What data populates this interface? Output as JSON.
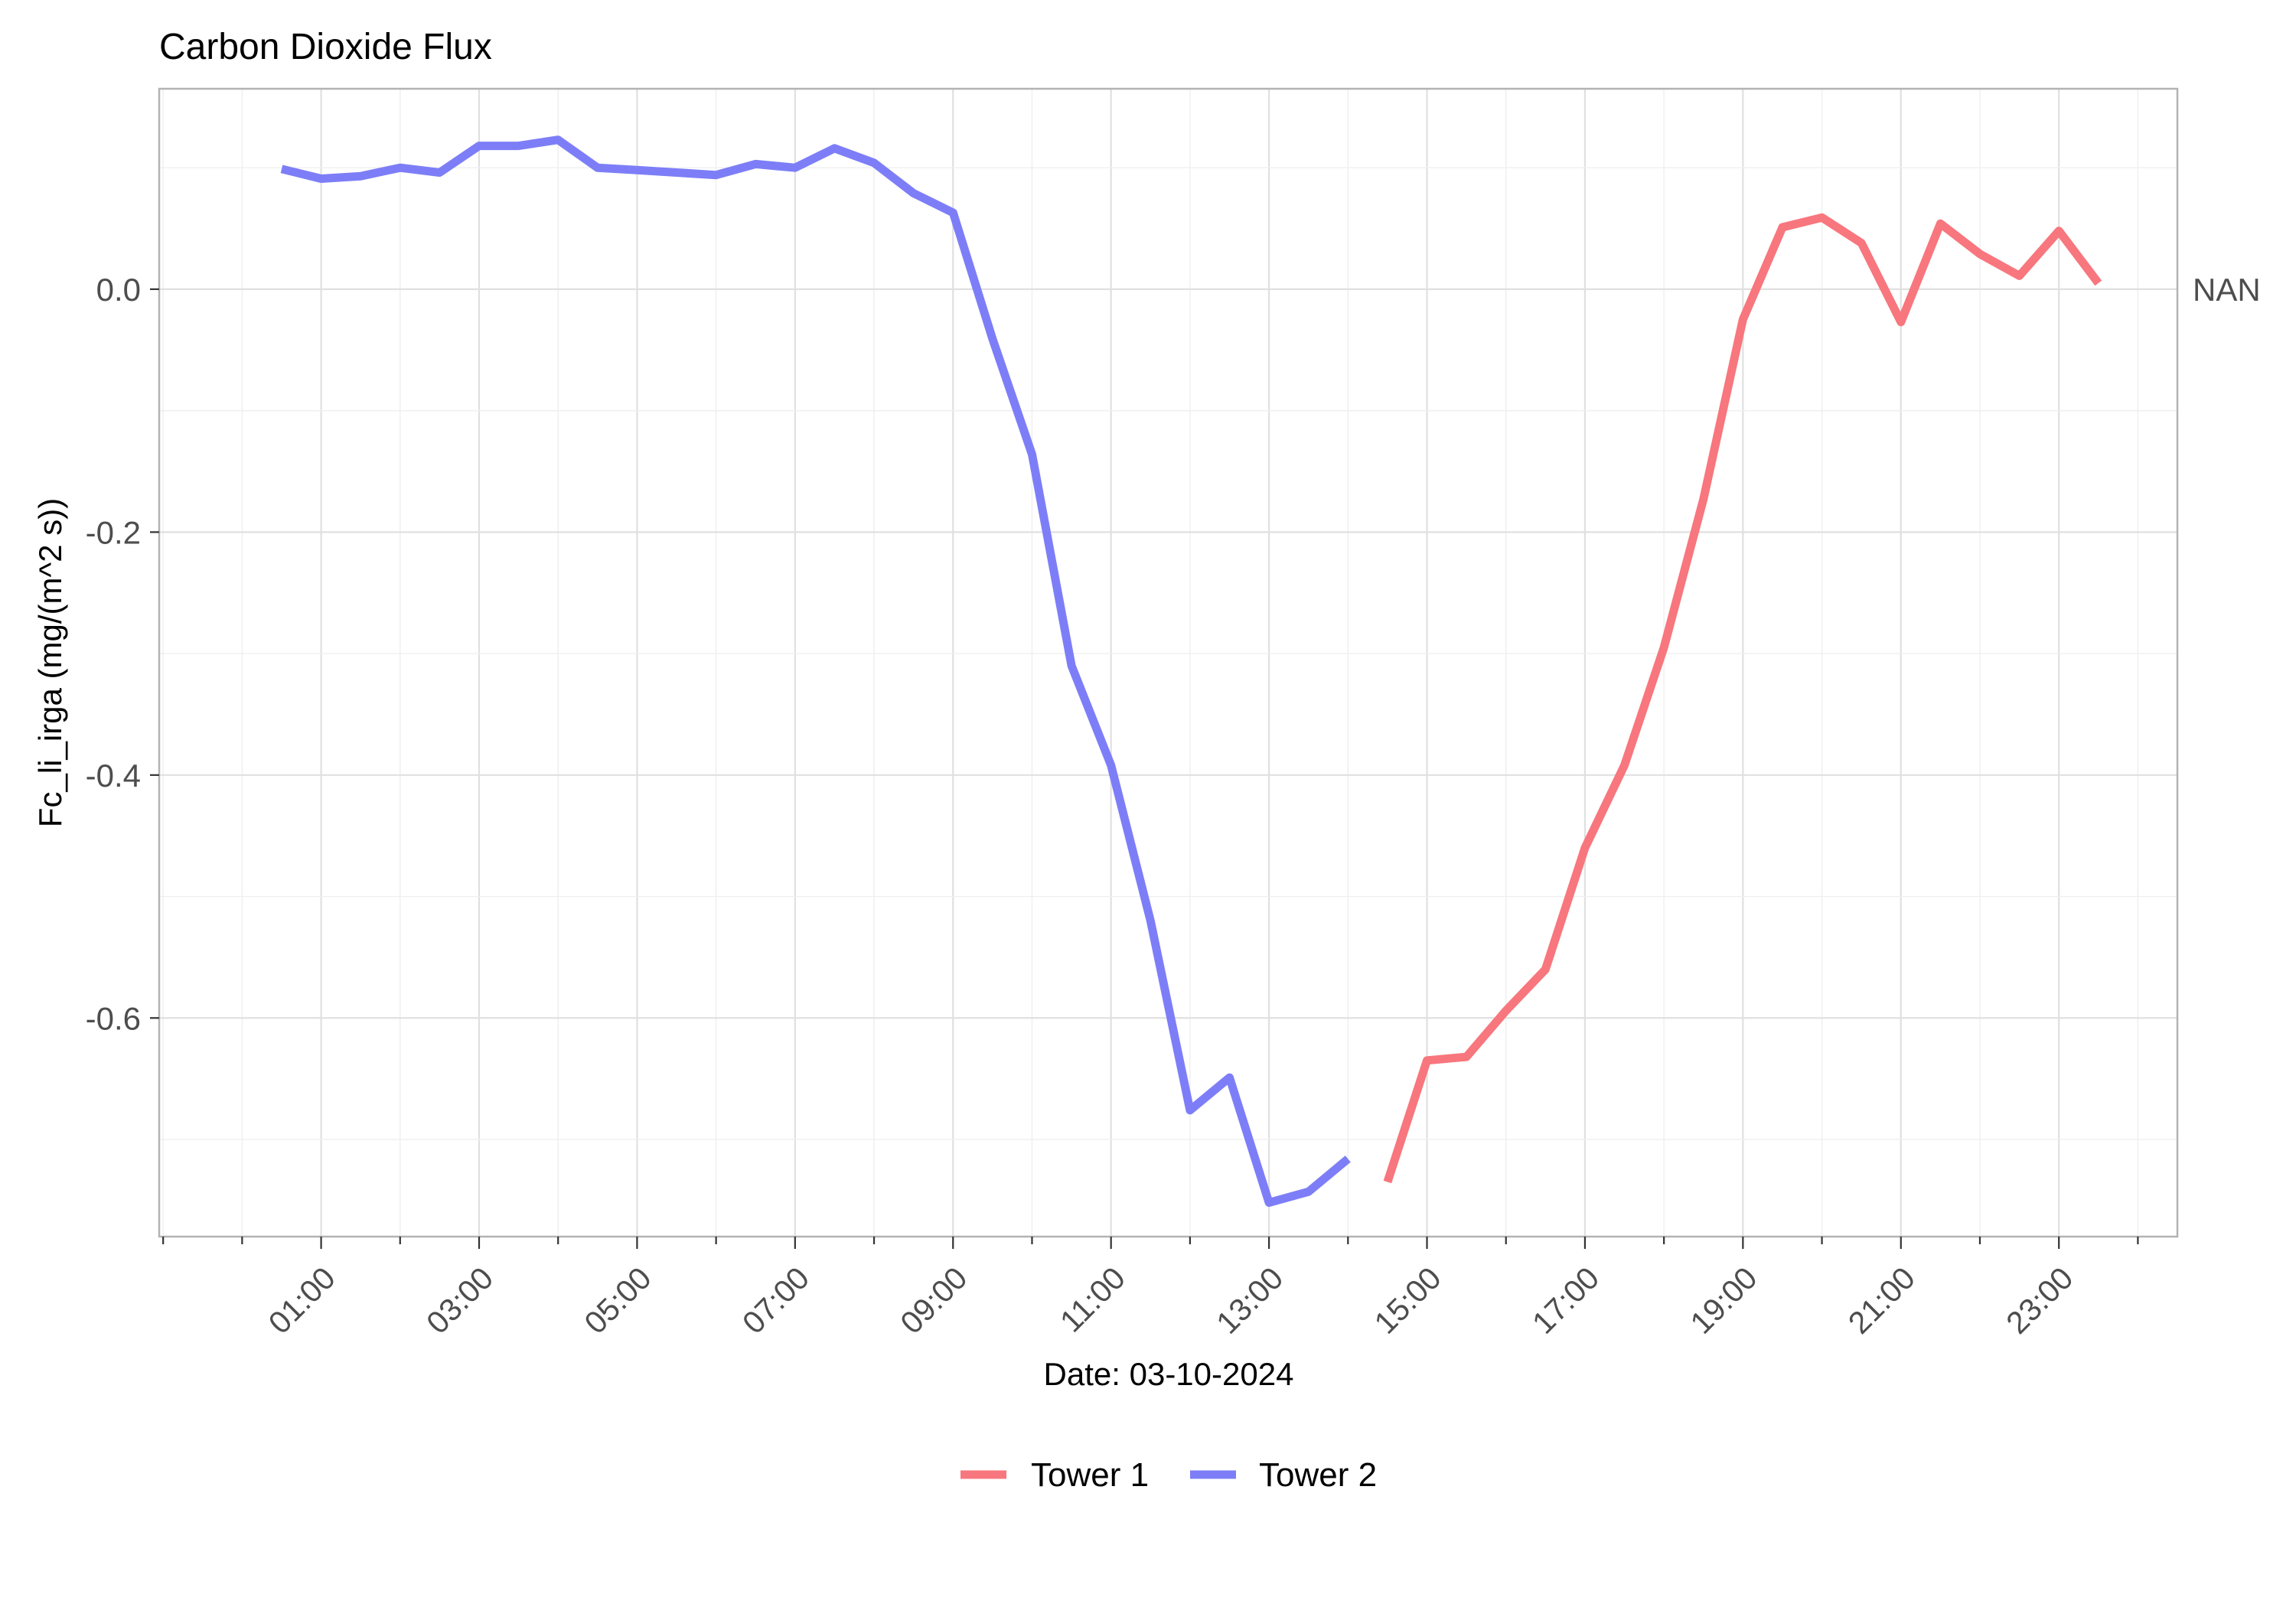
{
  "chart_data": {
    "type": "line",
    "title": "Carbon Dioxide Flux",
    "xlabel": "Date: 03-10-2024",
    "ylabel": "Fc_li_irga (mg/(m^2 s))",
    "y_secondary_label": "NAN",
    "xlim": [
      "00:00",
      "24:00"
    ],
    "ylim": [
      -0.78,
      0.165
    ],
    "x_ticks": [
      "01:00",
      "03:00",
      "05:00",
      "07:00",
      "09:00",
      "11:00",
      "13:00",
      "15:00",
      "17:00",
      "19:00",
      "21:00",
      "23:00"
    ],
    "y_ticks": [
      "0.0",
      "-0.2",
      "-0.4",
      "-0.6"
    ],
    "y_tick_values": [
      0.0,
      -0.2,
      -0.4,
      -0.6
    ],
    "grid": true,
    "legend_position": "bottom",
    "series": [
      {
        "name": "Tower 1",
        "color": "#f8767d",
        "points": [
          {
            "time": "14:30",
            "y": -0.735
          },
          {
            "time": "15:00",
            "y": -0.635
          },
          {
            "time": "15:30",
            "y": -0.632
          },
          {
            "time": "16:00",
            "y": -0.594
          },
          {
            "time": "16:30",
            "y": -0.56
          },
          {
            "time": "17:00",
            "y": -0.46
          },
          {
            "time": "17:30",
            "y": -0.392
          },
          {
            "time": "18:00",
            "y": -0.295
          },
          {
            "time": "18:30",
            "y": -0.173
          },
          {
            "time": "19:00",
            "y": -0.025
          },
          {
            "time": "19:30",
            "y": 0.051
          },
          {
            "time": "20:00",
            "y": 0.059
          },
          {
            "time": "20:30",
            "y": 0.038
          },
          {
            "time": "21:00",
            "y": -0.027
          },
          {
            "time": "21:30",
            "y": 0.054
          },
          {
            "time": "22:00",
            "y": 0.029
          },
          {
            "time": "22:30",
            "y": 0.011
          },
          {
            "time": "23:00",
            "y": 0.048
          },
          {
            "time": "23:30",
            "y": 0.005
          }
        ]
      },
      {
        "name": "Tower 2",
        "color": "#7d7ef7",
        "points": [
          {
            "time": "00:30",
            "y": 0.099
          },
          {
            "time": "01:00",
            "y": 0.091
          },
          {
            "time": "01:30",
            "y": 0.093
          },
          {
            "time": "02:00",
            "y": 0.1
          },
          {
            "time": "02:30",
            "y": 0.096
          },
          {
            "time": "03:00",
            "y": 0.118
          },
          {
            "time": "03:30",
            "y": 0.118
          },
          {
            "time": "04:00",
            "y": 0.123
          },
          {
            "time": "04:30",
            "y": 0.1
          },
          {
            "time": "05:00",
            "y": 0.098
          },
          {
            "time": "05:30",
            "y": 0.096
          },
          {
            "time": "06:00",
            "y": 0.094
          },
          {
            "time": "06:30",
            "y": 0.103
          },
          {
            "time": "07:00",
            "y": 0.1
          },
          {
            "time": "07:30",
            "y": 0.116
          },
          {
            "time": "08:00",
            "y": 0.104
          },
          {
            "time": "08:30",
            "y": 0.079
          },
          {
            "time": "09:00",
            "y": 0.063
          },
          {
            "time": "09:30",
            "y": -0.041
          },
          {
            "time": "10:00",
            "y": -0.136
          },
          {
            "time": "10:30",
            "y": -0.31
          },
          {
            "time": "11:00",
            "y": -0.392
          },
          {
            "time": "11:30",
            "y": -0.52
          },
          {
            "time": "12:00",
            "y": -0.676
          },
          {
            "time": "12:30",
            "y": -0.649
          },
          {
            "time": "13:00",
            "y": -0.752
          },
          {
            "time": "13:30",
            "y": -0.743
          },
          {
            "time": "14:00",
            "y": -0.716
          }
        ]
      }
    ]
  }
}
